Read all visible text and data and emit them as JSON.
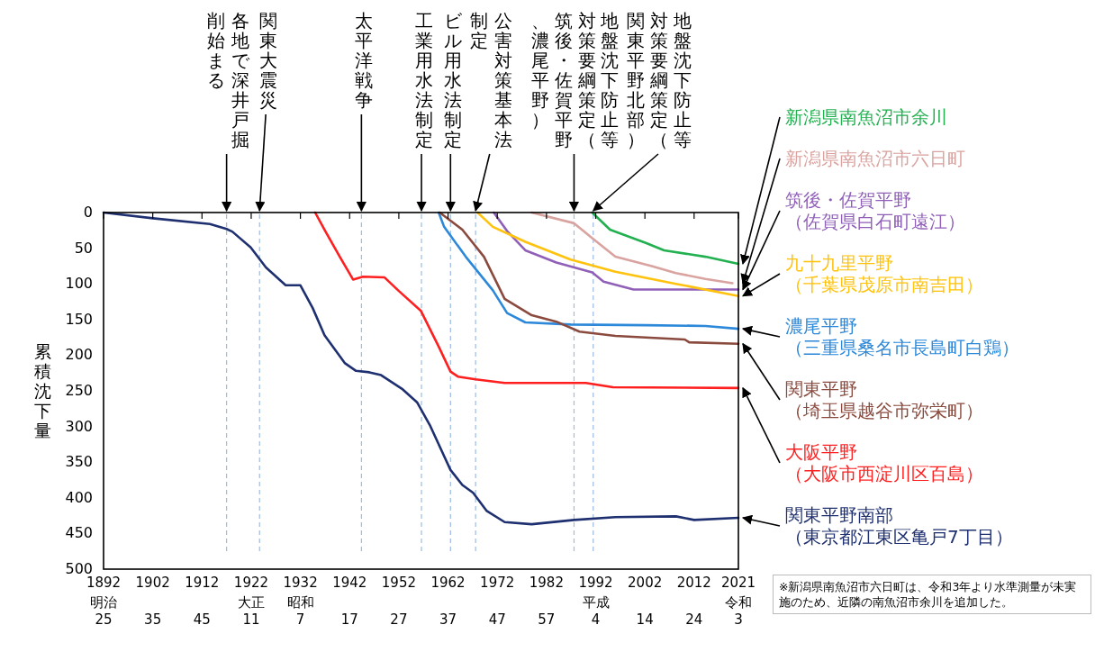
{
  "chart_data": {
    "type": "line",
    "ylabel": "累積沈下量",
    "xlim": [
      1892,
      2021
    ],
    "ylim": [
      500,
      0
    ],
    "xticks": [
      1892,
      1902,
      1912,
      1922,
      1932,
      1942,
      1952,
      1962,
      1972,
      1982,
      1992,
      2002,
      2012,
      2021
    ],
    "yticks": [
      0,
      50,
      100,
      150,
      200,
      250,
      300,
      350,
      400,
      450,
      500
    ],
    "grid": false,
    "legend": false,
    "marker": "none",
    "line_style": "solid",
    "series": [
      {
        "name": "新潟県南魚沼市余川",
        "color": "#22b050",
        "x": [
          1991.3,
          1994.9,
          2002.3,
          2005.9,
          2014.3,
          2021
        ],
        "values": [
          0,
          24,
          43,
          53,
          62,
          72
        ]
      },
      {
        "name": "新潟県南魚沼市六日町",
        "color": "#d9a3a0",
        "x": [
          1979,
          1987.6,
          1991.3,
          1996,
          2003.4,
          2008.3,
          2014.3,
          2019.8
        ],
        "values": [
          0,
          15,
          36,
          62,
          75,
          85,
          93,
          99
        ]
      },
      {
        "name": "筑後・佐賀平野（佐賀県白石町遠江）",
        "color": "#9060b8",
        "x": [
          1971.3,
          1974,
          1977.7,
          1984,
          1991.3,
          1993.6,
          1999.7,
          2008.3,
          2021
        ],
        "values": [
          0,
          26,
          53,
          70,
          84,
          97,
          108,
          108,
          108
        ]
      },
      {
        "name": "九十九里平野（千葉県茂原市南吉田）",
        "color": "#ffc20e",
        "x": [
          1968,
          1971.1,
          1977.7,
          1986.9,
          1996,
          2008.3,
          2021
        ],
        "values": [
          0,
          20,
          41,
          66,
          83,
          100,
          117
        ]
      },
      {
        "name": "濃尾平野（三重県桑名市長島町白鶏）",
        "color": "#2c88d9",
        "x": [
          1960.1,
          1961.2,
          1965.6,
          1971.1,
          1974,
          1977.7,
          1986.9,
          2002.3,
          2014.3,
          2021
        ],
        "values": [
          0,
          20,
          62,
          109,
          141,
          154,
          157,
          158,
          159,
          163
        ]
      },
      {
        "name": "関東平野（埼玉県越谷市弥栄町）",
        "color": "#8b4a3e",
        "x": [
          1960.3,
          1964.9,
          1969.3,
          1973.5,
          1979,
          1984,
          1988.7,
          1996,
          2010.1,
          2011,
          2021
        ],
        "values": [
          0,
          24,
          62,
          121,
          144,
          153,
          167,
          173,
          178,
          182,
          184
        ]
      },
      {
        "name": "大阪平野（大阪市西淀川区百島）",
        "color": "#ff1f1f",
        "x": [
          1935,
          1936.9,
          1940,
          1942.7,
          1944.7,
          1949.1,
          1952,
          1956.5,
          1960.1,
          1962.5,
          1964,
          1967.6,
          1973.5,
          1990,
          1995.5,
          2021
        ],
        "values": [
          0,
          24,
          62,
          94,
          90,
          91,
          110,
          138,
          188,
          223,
          230,
          234,
          239,
          239,
          245,
          246
        ]
      },
      {
        "name": "関東平野南部（東京都江東区亀戸7丁目）",
        "color": "#1f3070",
        "x": [
          1892,
          1902,
          1913.6,
          1917,
          1918.2,
          1921.9,
          1925,
          1929,
          1932,
          1934.5,
          1936.9,
          1941,
          1943.3,
          1946,
          1948.4,
          1952.8,
          1955.7,
          1958.3,
          1962.5,
          1964.9,
          1967.1,
          1969.8,
          1973.5,
          1979,
          1987.6,
          1996,
          2008.3,
          2012,
          2021
        ],
        "values": [
          0,
          8,
          16,
          23,
          27,
          49,
          77,
          102,
          102,
          134,
          172,
          211,
          222,
          224,
          228,
          248,
          266,
          298,
          361,
          382,
          393,
          418,
          434,
          437,
          431,
          427,
          426,
          431,
          428
        ]
      }
    ],
    "ref_lines": [
      {
        "axis": "x",
        "value": 1917,
        "label": "各地で深井戸掘削始まる",
        "color": "#9dbce0",
        "line_style": "dashed"
      },
      {
        "axis": "x",
        "value": 1923.7,
        "label": "関東大震災",
        "color": "#9dbce0",
        "line_style": "dashed"
      },
      {
        "axis": "x",
        "value": 1944.4,
        "label": "太平洋戦争",
        "color": "#9dbce0",
        "line_style": "dashed"
      },
      {
        "axis": "x",
        "value": 1956.6,
        "label": "工業用水法制定",
        "color": "#9dbce0",
        "line_style": "dashed"
      },
      {
        "axis": "x",
        "value": 1962.5,
        "label": "ビル用水法制定",
        "color": "#9dbce0",
        "line_style": "dashed"
      },
      {
        "axis": "x",
        "value": 1967.6,
        "label": "公害対策基本法制定",
        "color": "#9dbce0",
        "line_style": "dashed"
      },
      {
        "axis": "x",
        "value": 1987.6,
        "label": "地盤沈下防止等対策要綱策定（筑後・佐賀平野、濃尾平野）",
        "color": "#9dbce0",
        "line_style": "dashed"
      },
      {
        "axis": "x",
        "value": 1991.5,
        "label": "地盤沈下防止等対策要綱策定（関東平野北部）",
        "color": "#9dbce0",
        "line_style": "dashed"
      }
    ],
    "annotations": [
      "※新潟県南魚沼市六日町は、令和3年より水準測量が未実施のため、近隣の南魚沼市余川を追加した。",
      "明治25",
      "35",
      "45",
      "大正11",
      "昭和7",
      "17",
      "27",
      "37",
      "47",
      "57",
      "平成4",
      "14",
      "24",
      "令和3"
    ]
  }
}
